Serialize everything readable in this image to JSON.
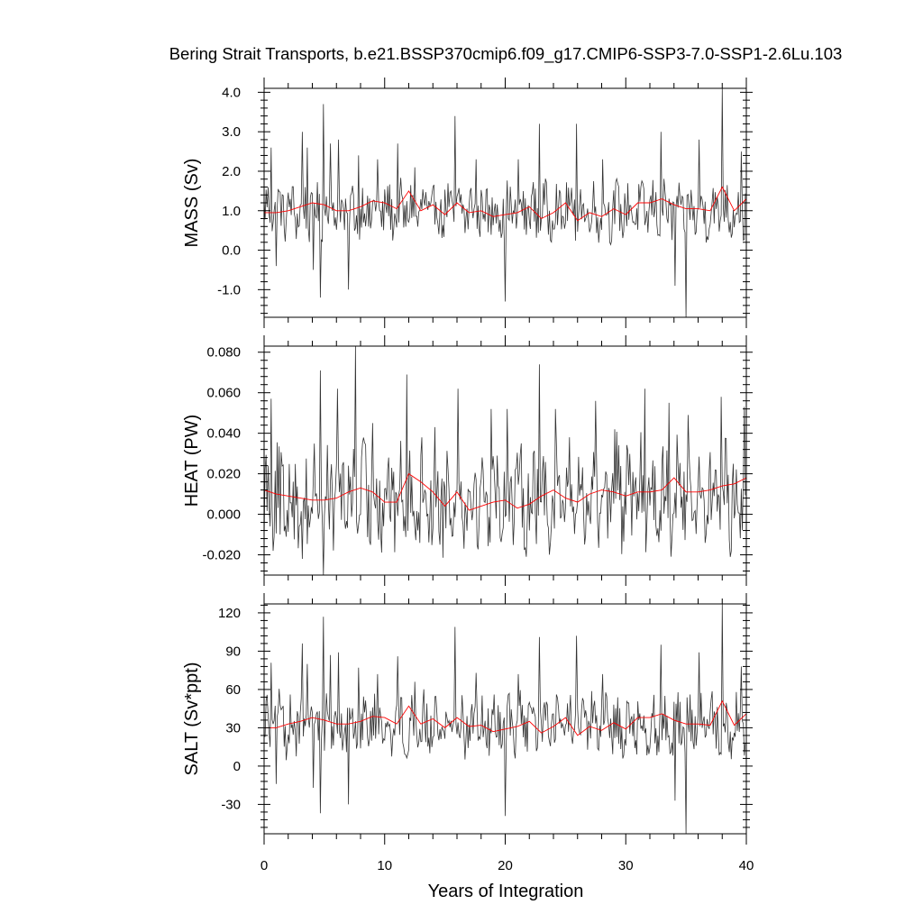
{
  "title": "Bering Strait Transports, b.e21.BSSP370cmip6.f09_g17.CMIP6-SSP3-7.0-SSP1-2.6Lu.103",
  "colors": {
    "monthly": "#333333",
    "annual": "#ff0000",
    "axes": "#000000"
  },
  "chart_data": {
    "type": "line",
    "title": "Bering Strait Transports, b.e21.BSSP370cmip6.f09_g17.CMIP6-SSP3-7.0-SSP1-2.6Lu.103",
    "xlabel": "Years of Integration",
    "xlim": [
      0,
      40
    ],
    "xticks": [
      "0",
      "10",
      "20",
      "30",
      "40"
    ],
    "panels": [
      {
        "ylabel": "MASS (Sv)",
        "ylim": [
          -1.7,
          4.1
        ],
        "yticks": [
          "4.0",
          "3.0",
          "2.0",
          "1.0",
          "0.0",
          "-1.0"
        ],
        "yticks_values": [
          4.0,
          3.0,
          2.0,
          1.0,
          0.0,
          -1.0
        ],
        "monthly_base": 1.0,
        "monthly_amp": 0.6,
        "monthly_spikes": [
          [
            0.6,
            2.6
          ],
          [
            1.0,
            -0.4
          ],
          [
            3.2,
            3.0
          ],
          [
            3.6,
            2.6
          ],
          [
            4.1,
            -0.5
          ],
          [
            4.7,
            -1.2
          ],
          [
            4.9,
            3.7
          ],
          [
            5.5,
            2.7
          ],
          [
            6.2,
            2.8
          ],
          [
            7.0,
            -1.0
          ],
          [
            7.8,
            2.4
          ],
          [
            9.4,
            2.3
          ],
          [
            11.1,
            2.7
          ],
          [
            12.5,
            2.1
          ],
          [
            15.8,
            3.4
          ],
          [
            17.6,
            2.3
          ],
          [
            20.0,
            -1.3
          ],
          [
            21.1,
            2.3
          ],
          [
            22.8,
            3.2
          ],
          [
            25.9,
            3.2
          ],
          [
            28.1,
            2.3
          ],
          [
            32.9,
            3.0
          ],
          [
            34.1,
            -0.9
          ],
          [
            35.0,
            -1.7
          ],
          [
            36.1,
            2.8
          ],
          [
            38.0,
            4.1
          ],
          [
            39.6,
            2.5
          ]
        ],
        "annual": [
          0.95,
          0.95,
          1.0,
          1.1,
          1.2,
          1.15,
          1.0,
          1.0,
          1.1,
          1.25,
          1.2,
          1.05,
          1.5,
          1.0,
          1.15,
          0.9,
          1.2,
          0.95,
          1.0,
          0.85,
          0.9,
          0.95,
          1.1,
          0.8,
          0.95,
          1.2,
          0.75,
          0.95,
          0.85,
          1.05,
          0.9,
          1.2,
          1.2,
          1.3,
          1.15,
          1.05,
          1.05,
          1.0,
          1.6,
          1.0,
          1.3
        ]
      },
      {
        "ylabel": "HEAT (PW)",
        "ylim": [
          -0.03,
          0.083
        ],
        "yticks": [
          "0.080",
          "0.060",
          "0.040",
          "0.020",
          "0.000",
          "-0.020"
        ],
        "yticks_values": [
          0.08,
          0.06,
          0.04,
          0.02,
          0.0,
          -0.02
        ],
        "monthly_base": 0.009,
        "monthly_amp": 0.022,
        "monthly_spikes": [
          [
            0.6,
            0.057
          ],
          [
            1.3,
            -0.01
          ],
          [
            3.2,
            -0.022
          ],
          [
            4.7,
            0.071
          ],
          [
            4.9,
            -0.03
          ],
          [
            6.1,
            0.062
          ],
          [
            7.6,
            0.083
          ],
          [
            9.0,
            0.045
          ],
          [
            11.8,
            0.069
          ],
          [
            13.1,
            0.038
          ],
          [
            14.2,
            0.043
          ],
          [
            16.1,
            0.062
          ],
          [
            18.8,
            0.052
          ],
          [
            20.2,
            0.052
          ],
          [
            22.8,
            0.074
          ],
          [
            24.2,
            0.052
          ],
          [
            27.5,
            0.056
          ],
          [
            29.1,
            0.042
          ],
          [
            31.6,
            0.062
          ],
          [
            33.6,
            0.055
          ],
          [
            35.2,
            0.049
          ],
          [
            37.9,
            0.058
          ],
          [
            39.8,
            0.053
          ]
        ],
        "annual": [
          0.012,
          0.01,
          0.009,
          0.008,
          0.007,
          0.007,
          0.008,
          0.011,
          0.013,
          0.011,
          0.006,
          0.006,
          0.02,
          0.016,
          0.011,
          0.004,
          0.011,
          0.002,
          0.004,
          0.006,
          0.007,
          0.003,
          0.005,
          0.009,
          0.012,
          0.008,
          0.006,
          0.01,
          0.012,
          0.011,
          0.009,
          0.011,
          0.011,
          0.012,
          0.018,
          0.011,
          0.011,
          0.012,
          0.014,
          0.015,
          0.018
        ]
      },
      {
        "ylabel": "SALT (Sv*ppt)",
        "ylim": [
          -53,
          127
        ],
        "yticks": [
          "120",
          "90",
          "60",
          "30",
          "0",
          "-30"
        ],
        "yticks_values": [
          120,
          90,
          60,
          30,
          0,
          -30
        ],
        "monthly_base": 32,
        "monthly_amp": 20,
        "monthly_spikes": [
          [
            0.6,
            81
          ],
          [
            1.0,
            -14
          ],
          [
            3.2,
            96
          ],
          [
            3.6,
            80
          ],
          [
            4.1,
            -17
          ],
          [
            4.7,
            -37
          ],
          [
            4.9,
            117
          ],
          [
            5.5,
            87
          ],
          [
            6.2,
            89
          ],
          [
            7.0,
            -30
          ],
          [
            7.8,
            77
          ],
          [
            9.4,
            72
          ],
          [
            11.1,
            86
          ],
          [
            12.5,
            66
          ],
          [
            15.8,
            109
          ],
          [
            17.6,
            73
          ],
          [
            20.0,
            -39
          ],
          [
            21.1,
            72
          ],
          [
            22.8,
            101
          ],
          [
            25.9,
            102
          ],
          [
            28.1,
            72
          ],
          [
            32.9,
            95
          ],
          [
            34.1,
            -27
          ],
          [
            35.0,
            -53
          ],
          [
            36.1,
            89
          ],
          [
            38.0,
            127
          ],
          [
            39.6,
            78
          ]
        ],
        "annual": [
          30,
          30,
          33,
          35,
          38,
          36,
          33,
          33,
          35,
          39,
          38,
          33,
          47,
          33,
          37,
          30,
          38,
          31,
          32,
          27,
          29,
          31,
          35,
          26,
          31,
          38,
          24,
          31,
          28,
          34,
          29,
          38,
          38,
          41,
          36,
          33,
          33,
          32,
          51,
          32,
          41
        ]
      }
    ]
  }
}
